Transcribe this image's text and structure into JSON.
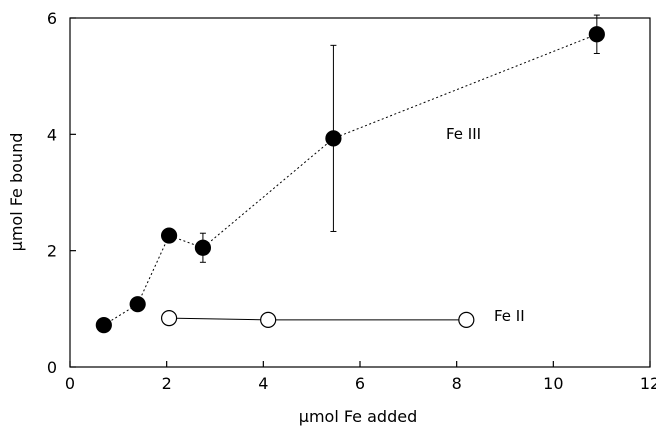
{
  "chart_data": {
    "type": "scatter",
    "xlabel": "μmol Fe added",
    "ylabel": "μmol Fe bound",
    "xlim": [
      0,
      12
    ],
    "ylim": [
      0,
      6
    ],
    "xticks": [
      0,
      2,
      4,
      6,
      8,
      10,
      12
    ],
    "yticks": [
      0,
      2,
      4,
      6
    ],
    "grid": false,
    "series": [
      {
        "name": "Fe III",
        "marker": "filled-circle",
        "line": "dotted",
        "points": [
          {
            "x": 0.7,
            "y": 0.72,
            "err": 0
          },
          {
            "x": 1.4,
            "y": 1.08,
            "err": 0
          },
          {
            "x": 2.05,
            "y": 2.26,
            "err": 0
          },
          {
            "x": 2.75,
            "y": 2.05,
            "err": 0.25
          },
          {
            "x": 5.45,
            "y": 3.93,
            "err": 1.6
          },
          {
            "x": 10.9,
            "y": 5.72,
            "err": 0.33
          }
        ]
      },
      {
        "name": "Fe II",
        "marker": "open-circle",
        "line": "solid",
        "points": [
          {
            "x": 2.05,
            "y": 0.84,
            "err": 0
          },
          {
            "x": 4.1,
            "y": 0.81,
            "err": 0
          },
          {
            "x": 8.2,
            "y": 0.81,
            "err": 0
          }
        ]
      }
    ],
    "annotations": [
      "Fe III",
      "Fe II"
    ],
    "colors": {
      "axis": "#000000",
      "filled": "#000000",
      "open_fill": "#ffffff"
    }
  }
}
